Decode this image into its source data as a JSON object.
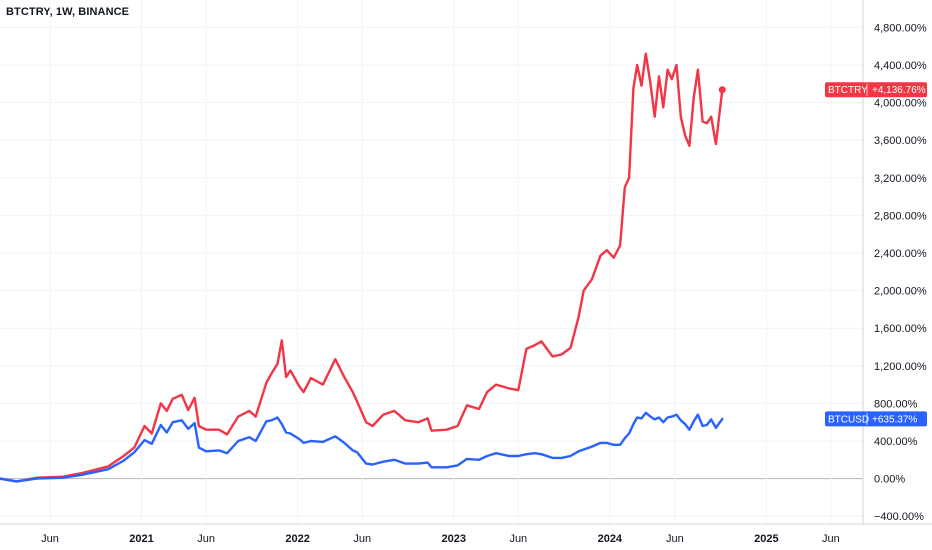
{
  "header": {
    "title": "BTCTRY, 1W, BINANCE"
  },
  "chart_data": {
    "type": "line",
    "title": "BTCTRY, 1W, BINANCE",
    "y_unit": "%",
    "ylim": [
      -400,
      4800
    ],
    "y_ticks": [
      -400,
      0,
      400,
      800,
      1200,
      1600,
      2000,
      2400,
      2800,
      3200,
      3600,
      4000,
      4400,
      4800
    ],
    "y_tick_labels": [
      "−400.00%",
      "0.00%",
      "400.00%",
      "800.00%",
      "1,200.00%",
      "1,600.00%",
      "2,000.00%",
      "2,400.00%",
      "2,800.00%",
      "3,200.00%",
      "3,600.00%",
      "4,000.00%",
      "4,400.00%",
      "4,800.00%"
    ],
    "xlim": [
      "2020-02-05",
      "2025-08-15"
    ],
    "x_ticks": [
      {
        "date": "2020-06-01",
        "label": "Jun",
        "year": false
      },
      {
        "date": "2021-01-01",
        "label": "2021",
        "year": true
      },
      {
        "date": "2021-06-01",
        "label": "Jun",
        "year": false
      },
      {
        "date": "2022-01-01",
        "label": "2022",
        "year": true
      },
      {
        "date": "2022-06-01",
        "label": "Jun",
        "year": false
      },
      {
        "date": "2023-01-01",
        "label": "2023",
        "year": true
      },
      {
        "date": "2023-06-01",
        "label": "Jun",
        "year": false
      },
      {
        "date": "2024-01-01",
        "label": "2024",
        "year": true
      },
      {
        "date": "2024-06-01",
        "label": "Jun",
        "year": false
      },
      {
        "date": "2025-01-01",
        "label": "2025",
        "year": true
      },
      {
        "date": "2025-06-01",
        "label": "Jun",
        "year": false
      }
    ],
    "grid": true,
    "series": [
      {
        "name": "BTCTRY",
        "color": "#f23645",
        "last_label": "+4,136.76%",
        "points": [
          [
            "2020-02-05",
            0
          ],
          [
            "2020-03-15",
            -30
          ],
          [
            "2020-05-01",
            10
          ],
          [
            "2020-07-01",
            20
          ],
          [
            "2020-08-15",
            60
          ],
          [
            "2020-10-15",
            130
          ],
          [
            "2020-11-20",
            240
          ],
          [
            "2020-12-15",
            330
          ],
          [
            "2021-01-08",
            560
          ],
          [
            "2021-01-25",
            480
          ],
          [
            "2021-02-15",
            800
          ],
          [
            "2021-03-01",
            720
          ],
          [
            "2021-03-15",
            850
          ],
          [
            "2021-04-05",
            890
          ],
          [
            "2021-04-20",
            730
          ],
          [
            "2021-05-05",
            860
          ],
          [
            "2021-05-15",
            560
          ],
          [
            "2021-06-01",
            520
          ],
          [
            "2021-07-01",
            520
          ],
          [
            "2021-07-20",
            470
          ],
          [
            "2021-08-15",
            660
          ],
          [
            "2021-09-10",
            720
          ],
          [
            "2021-09-25",
            660
          ],
          [
            "2021-10-20",
            1020
          ],
          [
            "2021-11-01",
            1120
          ],
          [
            "2021-11-15",
            1220
          ],
          [
            "2021-11-25",
            1470
          ],
          [
            "2021-12-05",
            1080
          ],
          [
            "2021-12-15",
            1150
          ],
          [
            "2022-01-05",
            980
          ],
          [
            "2022-01-15",
            920
          ],
          [
            "2022-02-01",
            1070
          ],
          [
            "2022-03-01",
            1000
          ],
          [
            "2022-03-30",
            1270
          ],
          [
            "2022-04-20",
            1080
          ],
          [
            "2022-05-10",
            920
          ],
          [
            "2022-05-20",
            820
          ],
          [
            "2022-06-10",
            600
          ],
          [
            "2022-06-25",
            560
          ],
          [
            "2022-07-20",
            680
          ],
          [
            "2022-08-15",
            720
          ],
          [
            "2022-09-10",
            620
          ],
          [
            "2022-10-10",
            600
          ],
          [
            "2022-11-01",
            640
          ],
          [
            "2022-11-10",
            510
          ],
          [
            "2022-12-15",
            520
          ],
          [
            "2023-01-10",
            560
          ],
          [
            "2023-02-01",
            780
          ],
          [
            "2023-03-01",
            740
          ],
          [
            "2023-03-20",
            920
          ],
          [
            "2023-04-10",
            1000
          ],
          [
            "2023-05-10",
            960
          ],
          [
            "2023-06-01",
            940
          ],
          [
            "2023-06-20",
            1380
          ],
          [
            "2023-07-10",
            1420
          ],
          [
            "2023-07-25",
            1460
          ],
          [
            "2023-08-20",
            1300
          ],
          [
            "2023-09-10",
            1320
          ],
          [
            "2023-10-01",
            1390
          ],
          [
            "2023-10-20",
            1720
          ],
          [
            "2023-11-01",
            2000
          ],
          [
            "2023-11-20",
            2120
          ],
          [
            "2023-12-10",
            2370
          ],
          [
            "2023-12-25",
            2430
          ],
          [
            "2024-01-10",
            2350
          ],
          [
            "2024-01-25",
            2480
          ],
          [
            "2024-02-05",
            3100
          ],
          [
            "2024-02-15",
            3200
          ],
          [
            "2024-02-25",
            4150
          ],
          [
            "2024-03-05",
            4400
          ],
          [
            "2024-03-15",
            4180
          ],
          [
            "2024-03-25",
            4520
          ],
          [
            "2024-04-05",
            4200
          ],
          [
            "2024-04-15",
            3850
          ],
          [
            "2024-04-25",
            4280
          ],
          [
            "2024-05-05",
            3950
          ],
          [
            "2024-05-15",
            4350
          ],
          [
            "2024-05-25",
            4250
          ],
          [
            "2024-06-05",
            4400
          ],
          [
            "2024-06-15",
            3850
          ],
          [
            "2024-06-25",
            3650
          ],
          [
            "2024-07-05",
            3540
          ],
          [
            "2024-07-15",
            4050
          ],
          [
            "2024-07-25",
            4350
          ],
          [
            "2024-08-05",
            3800
          ],
          [
            "2024-08-15",
            3780
          ],
          [
            "2024-08-25",
            3850
          ],
          [
            "2024-09-05",
            3560
          ],
          [
            "2024-09-20",
            4137
          ]
        ]
      },
      {
        "name": "BTCUSD",
        "color": "#2962ff",
        "last_label": "+635.37%",
        "points": [
          [
            "2020-02-05",
            0
          ],
          [
            "2020-03-15",
            -30
          ],
          [
            "2020-05-01",
            0
          ],
          [
            "2020-07-01",
            10
          ],
          [
            "2020-08-15",
            40
          ],
          [
            "2020-10-15",
            100
          ],
          [
            "2020-11-20",
            190
          ],
          [
            "2020-12-15",
            280
          ],
          [
            "2021-01-08",
            410
          ],
          [
            "2021-01-25",
            370
          ],
          [
            "2021-02-15",
            570
          ],
          [
            "2021-03-01",
            490
          ],
          [
            "2021-03-15",
            600
          ],
          [
            "2021-04-05",
            620
          ],
          [
            "2021-04-20",
            530
          ],
          [
            "2021-05-05",
            590
          ],
          [
            "2021-05-15",
            330
          ],
          [
            "2021-06-01",
            290
          ],
          [
            "2021-07-01",
            300
          ],
          [
            "2021-07-20",
            270
          ],
          [
            "2021-08-15",
            400
          ],
          [
            "2021-09-10",
            440
          ],
          [
            "2021-09-25",
            400
          ],
          [
            "2021-10-20",
            610
          ],
          [
            "2021-11-01",
            620
          ],
          [
            "2021-11-15",
            650
          ],
          [
            "2021-11-25",
            580
          ],
          [
            "2021-12-05",
            490
          ],
          [
            "2021-12-15",
            480
          ],
          [
            "2022-01-05",
            420
          ],
          [
            "2022-01-15",
            380
          ],
          [
            "2022-02-01",
            400
          ],
          [
            "2022-03-01",
            390
          ],
          [
            "2022-03-30",
            450
          ],
          [
            "2022-04-20",
            380
          ],
          [
            "2022-05-10",
            300
          ],
          [
            "2022-05-20",
            280
          ],
          [
            "2022-06-10",
            160
          ],
          [
            "2022-06-25",
            150
          ],
          [
            "2022-07-20",
            180
          ],
          [
            "2022-08-15",
            200
          ],
          [
            "2022-09-10",
            160
          ],
          [
            "2022-10-10",
            160
          ],
          [
            "2022-11-01",
            170
          ],
          [
            "2022-11-10",
            120
          ],
          [
            "2022-12-15",
            120
          ],
          [
            "2023-01-10",
            140
          ],
          [
            "2023-02-01",
            210
          ],
          [
            "2023-03-01",
            200
          ],
          [
            "2023-03-20",
            240
          ],
          [
            "2023-04-10",
            270
          ],
          [
            "2023-05-10",
            240
          ],
          [
            "2023-06-01",
            240
          ],
          [
            "2023-06-20",
            260
          ],
          [
            "2023-07-10",
            270
          ],
          [
            "2023-07-25",
            260
          ],
          [
            "2023-08-20",
            220
          ],
          [
            "2023-09-10",
            220
          ],
          [
            "2023-10-01",
            240
          ],
          [
            "2023-10-20",
            290
          ],
          [
            "2023-11-01",
            310
          ],
          [
            "2023-11-20",
            340
          ],
          [
            "2023-12-10",
            380
          ],
          [
            "2023-12-25",
            380
          ],
          [
            "2024-01-10",
            360
          ],
          [
            "2024-01-25",
            360
          ],
          [
            "2024-02-05",
            430
          ],
          [
            "2024-02-15",
            480
          ],
          [
            "2024-02-25",
            580
          ],
          [
            "2024-03-05",
            650
          ],
          [
            "2024-03-15",
            640
          ],
          [
            "2024-03-25",
            700
          ],
          [
            "2024-04-05",
            660
          ],
          [
            "2024-04-15",
            630
          ],
          [
            "2024-04-25",
            650
          ],
          [
            "2024-05-05",
            600
          ],
          [
            "2024-05-15",
            650
          ],
          [
            "2024-05-25",
            660
          ],
          [
            "2024-06-05",
            680
          ],
          [
            "2024-06-15",
            620
          ],
          [
            "2024-06-25",
            580
          ],
          [
            "2024-07-05",
            520
          ],
          [
            "2024-07-15",
            610
          ],
          [
            "2024-07-25",
            680
          ],
          [
            "2024-08-05",
            560
          ],
          [
            "2024-08-15",
            570
          ],
          [
            "2024-08-25",
            630
          ],
          [
            "2024-09-05",
            540
          ],
          [
            "2024-09-20",
            635
          ]
        ]
      }
    ]
  }
}
